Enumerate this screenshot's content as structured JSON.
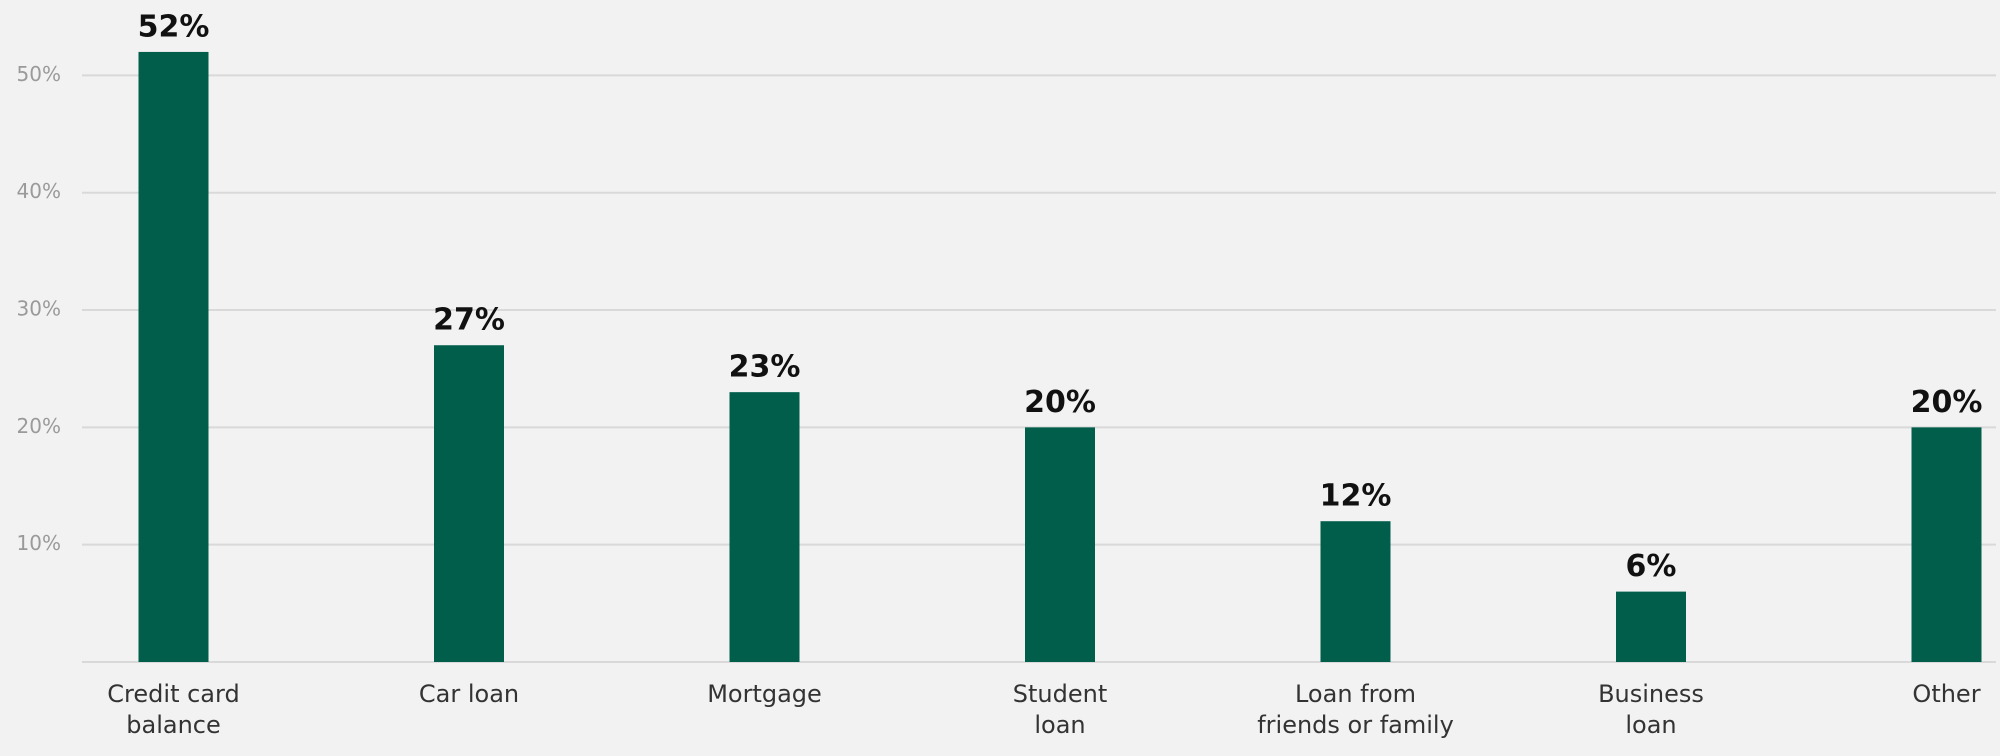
{
  "chart_data": {
    "type": "bar",
    "categories": [
      [
        "Credit card",
        "balance"
      ],
      [
        "Car loan"
      ],
      [
        "Mortgage"
      ],
      [
        "Student",
        "loan"
      ],
      [
        "Loan from",
        "friends or family"
      ],
      [
        "Business",
        "loan"
      ],
      [
        "Other"
      ]
    ],
    "values": [
      52,
      27,
      23,
      20,
      12,
      6,
      20
    ],
    "value_labels": [
      "52%",
      "27%",
      "23%",
      "20%",
      "12%",
      "6%",
      "20%"
    ],
    "color": "#005e4b",
    "ylim": [
      0,
      56
    ],
    "yticks": [
      {
        "value": 10,
        "label": "10%"
      },
      {
        "value": 20,
        "label": "20%"
      },
      {
        "value": 30,
        "label": "30%"
      },
      {
        "value": 40,
        "label": "40%"
      },
      {
        "value": 50,
        "label": "50%"
      }
    ],
    "grid": true
  }
}
